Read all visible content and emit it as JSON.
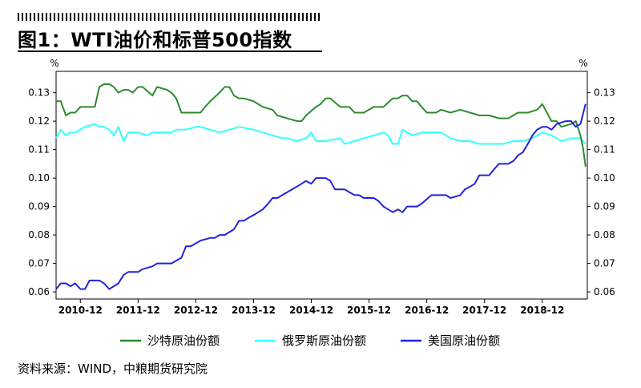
{
  "title": "图1：WTI油价和标普500指数",
  "source": "资料来源：WIND，中粮期货研究院",
  "chart_data": {
    "type": "line",
    "left_unit": "%",
    "right_unit": "%",
    "y_ticks": [
      "0.06",
      "0.07",
      "0.08",
      "0.09",
      "0.10",
      "0.11",
      "0.12",
      "0.13"
    ],
    "x_ticks": [
      {
        "label": "2010-12",
        "t": 2010.92
      },
      {
        "label": "2011-12",
        "t": 2011.92
      },
      {
        "label": "2012-12",
        "t": 2012.92
      },
      {
        "label": "2013-12",
        "t": 2013.92
      },
      {
        "label": "2014-12",
        "t": 2014.92
      },
      {
        "label": "2015-12",
        "t": 2015.92
      },
      {
        "label": "2016-12",
        "t": 2016.92
      },
      {
        "label": "2017-12",
        "t": 2017.92
      },
      {
        "label": "2018-12",
        "t": 2018.92
      }
    ],
    "xlim": [
      2010.5,
      2019.7
    ],
    "ylim": [
      0.0575,
      0.1375
    ],
    "grid": false,
    "legend_position": "bottom",
    "series": [
      {
        "name": "沙特原油份额",
        "color": "#2e8b2e",
        "points": [
          [
            2010.5,
            0.127
          ],
          [
            2010.58,
            0.127
          ],
          [
            2010.67,
            0.122
          ],
          [
            2010.75,
            0.123
          ],
          [
            2010.83,
            0.123
          ],
          [
            2010.92,
            0.125
          ],
          [
            2011.0,
            0.125
          ],
          [
            2011.17,
            0.125
          ],
          [
            2011.25,
            0.132
          ],
          [
            2011.33,
            0.133
          ],
          [
            2011.42,
            0.133
          ],
          [
            2011.5,
            0.132
          ],
          [
            2011.58,
            0.13
          ],
          [
            2011.67,
            0.131
          ],
          [
            2011.75,
            0.131
          ],
          [
            2011.83,
            0.13
          ],
          [
            2011.92,
            0.132
          ],
          [
            2012.0,
            0.132
          ],
          [
            2012.17,
            0.129
          ],
          [
            2012.25,
            0.132
          ],
          [
            2012.42,
            0.131
          ],
          [
            2012.5,
            0.13
          ],
          [
            2012.58,
            0.128
          ],
          [
            2012.67,
            0.123
          ],
          [
            2012.83,
            0.123
          ],
          [
            2013.0,
            0.123
          ],
          [
            2013.08,
            0.125
          ],
          [
            2013.17,
            0.127
          ],
          [
            2013.33,
            0.13
          ],
          [
            2013.42,
            0.132
          ],
          [
            2013.5,
            0.132
          ],
          [
            2013.58,
            0.129
          ],
          [
            2013.67,
            0.128
          ],
          [
            2013.75,
            0.128
          ],
          [
            2013.92,
            0.127
          ],
          [
            2014.08,
            0.125
          ],
          [
            2014.25,
            0.124
          ],
          [
            2014.33,
            0.122
          ],
          [
            2014.5,
            0.121
          ],
          [
            2014.67,
            0.12
          ],
          [
            2014.75,
            0.12
          ],
          [
            2014.83,
            0.122
          ],
          [
            2015.0,
            0.125
          ],
          [
            2015.08,
            0.126
          ],
          [
            2015.17,
            0.128
          ],
          [
            2015.25,
            0.128
          ],
          [
            2015.42,
            0.125
          ],
          [
            2015.58,
            0.125
          ],
          [
            2015.67,
            0.123
          ],
          [
            2015.83,
            0.123
          ],
          [
            2016.0,
            0.125
          ],
          [
            2016.17,
            0.125
          ],
          [
            2016.33,
            0.128
          ],
          [
            2016.42,
            0.128
          ],
          [
            2016.5,
            0.129
          ],
          [
            2016.58,
            0.129
          ],
          [
            2016.67,
            0.127
          ],
          [
            2016.75,
            0.127
          ],
          [
            2016.83,
            0.125
          ],
          [
            2016.92,
            0.123
          ],
          [
            2017.08,
            0.123
          ],
          [
            2017.17,
            0.124
          ],
          [
            2017.33,
            0.123
          ],
          [
            2017.5,
            0.124
          ],
          [
            2017.67,
            0.123
          ],
          [
            2017.83,
            0.122
          ],
          [
            2018.0,
            0.122
          ],
          [
            2018.17,
            0.121
          ],
          [
            2018.33,
            0.121
          ],
          [
            2018.5,
            0.123
          ],
          [
            2018.67,
            0.123
          ],
          [
            2018.83,
            0.124
          ],
          [
            2018.92,
            0.126
          ],
          [
            2019.0,
            0.123
          ],
          [
            2019.08,
            0.12
          ],
          [
            2019.17,
            0.12
          ],
          [
            2019.25,
            0.118
          ],
          [
            2019.42,
            0.119
          ],
          [
            2019.5,
            0.12
          ],
          [
            2019.58,
            0.115
          ],
          [
            2019.63,
            0.11
          ],
          [
            2019.67,
            0.104
          ]
        ]
      },
      {
        "name": "俄罗斯原油份额",
        "color": "#33ffff",
        "points": [
          [
            2010.5,
            0.114
          ],
          [
            2010.58,
            0.117
          ],
          [
            2010.67,
            0.115
          ],
          [
            2010.75,
            0.116
          ],
          [
            2010.83,
            0.116
          ],
          [
            2011.0,
            0.118
          ],
          [
            2011.17,
            0.119
          ],
          [
            2011.25,
            0.118
          ],
          [
            2011.33,
            0.118
          ],
          [
            2011.42,
            0.117
          ],
          [
            2011.5,
            0.115
          ],
          [
            2011.58,
            0.118
          ],
          [
            2011.67,
            0.113
          ],
          [
            2011.75,
            0.116
          ],
          [
            2011.92,
            0.116
          ],
          [
            2012.08,
            0.115
          ],
          [
            2012.17,
            0.116
          ],
          [
            2012.33,
            0.116
          ],
          [
            2012.5,
            0.116
          ],
          [
            2012.58,
            0.117
          ],
          [
            2012.75,
            0.117
          ],
          [
            2012.92,
            0.118
          ],
          [
            2013.0,
            0.118
          ],
          [
            2013.17,
            0.117
          ],
          [
            2013.33,
            0.116
          ],
          [
            2013.5,
            0.117
          ],
          [
            2013.67,
            0.118
          ],
          [
            2013.92,
            0.117
          ],
          [
            2014.08,
            0.116
          ],
          [
            2014.25,
            0.115
          ],
          [
            2014.42,
            0.114
          ],
          [
            2014.5,
            0.114
          ],
          [
            2014.67,
            0.113
          ],
          [
            2014.83,
            0.114
          ],
          [
            2014.92,
            0.116
          ],
          [
            2015.0,
            0.113
          ],
          [
            2015.17,
            0.113
          ],
          [
            2015.42,
            0.114
          ],
          [
            2015.5,
            0.112
          ],
          [
            2015.67,
            0.113
          ],
          [
            2015.83,
            0.114
          ],
          [
            2016.0,
            0.115
          ],
          [
            2016.17,
            0.116
          ],
          [
            2016.25,
            0.115
          ],
          [
            2016.33,
            0.112
          ],
          [
            2016.42,
            0.112
          ],
          [
            2016.5,
            0.117
          ],
          [
            2016.67,
            0.115
          ],
          [
            2016.83,
            0.116
          ],
          [
            2017.0,
            0.116
          ],
          [
            2017.17,
            0.116
          ],
          [
            2017.33,
            0.114
          ],
          [
            2017.5,
            0.113
          ],
          [
            2017.67,
            0.113
          ],
          [
            2017.83,
            0.112
          ],
          [
            2018.0,
            0.112
          ],
          [
            2018.25,
            0.112
          ],
          [
            2018.42,
            0.113
          ],
          [
            2018.58,
            0.113
          ],
          [
            2018.75,
            0.114
          ],
          [
            2018.92,
            0.116
          ],
          [
            2019.08,
            0.115
          ],
          [
            2019.25,
            0.113
          ],
          [
            2019.42,
            0.114
          ],
          [
            2019.58,
            0.114
          ],
          [
            2019.67,
            0.112
          ]
        ]
      },
      {
        "name": "美国原油份额",
        "color": "#2222dd",
        "points": [
          [
            2010.5,
            0.061
          ],
          [
            2010.58,
            0.063
          ],
          [
            2010.67,
            0.063
          ],
          [
            2010.75,
            0.062
          ],
          [
            2010.83,
            0.063
          ],
          [
            2010.92,
            0.061
          ],
          [
            2011.0,
            0.061
          ],
          [
            2011.08,
            0.064
          ],
          [
            2011.17,
            0.064
          ],
          [
            2011.25,
            0.064
          ],
          [
            2011.33,
            0.063
          ],
          [
            2011.42,
            0.061
          ],
          [
            2011.5,
            0.062
          ],
          [
            2011.58,
            0.063
          ],
          [
            2011.67,
            0.066
          ],
          [
            2011.75,
            0.067
          ],
          [
            2011.92,
            0.067
          ],
          [
            2012.0,
            0.068
          ],
          [
            2012.17,
            0.069
          ],
          [
            2012.25,
            0.07
          ],
          [
            2012.42,
            0.07
          ],
          [
            2012.5,
            0.07
          ],
          [
            2012.58,
            0.071
          ],
          [
            2012.67,
            0.072
          ],
          [
            2012.75,
            0.076
          ],
          [
            2012.83,
            0.076
          ],
          [
            2013.0,
            0.078
          ],
          [
            2013.17,
            0.079
          ],
          [
            2013.25,
            0.079
          ],
          [
            2013.33,
            0.08
          ],
          [
            2013.42,
            0.08
          ],
          [
            2013.5,
            0.081
          ],
          [
            2013.58,
            0.082
          ],
          [
            2013.67,
            0.085
          ],
          [
            2013.75,
            0.085
          ],
          [
            2013.83,
            0.086
          ],
          [
            2013.92,
            0.087
          ],
          [
            2014.08,
            0.089
          ],
          [
            2014.17,
            0.091
          ],
          [
            2014.25,
            0.093
          ],
          [
            2014.33,
            0.093
          ],
          [
            2014.5,
            0.095
          ],
          [
            2014.67,
            0.097
          ],
          [
            2014.75,
            0.098
          ],
          [
            2014.83,
            0.099
          ],
          [
            2014.92,
            0.098
          ],
          [
            2015.0,
            0.1
          ],
          [
            2015.08,
            0.1
          ],
          [
            2015.17,
            0.1
          ],
          [
            2015.25,
            0.099
          ],
          [
            2015.33,
            0.096
          ],
          [
            2015.5,
            0.096
          ],
          [
            2015.58,
            0.095
          ],
          [
            2015.67,
            0.094
          ],
          [
            2015.75,
            0.094
          ],
          [
            2015.83,
            0.093
          ],
          [
            2016.0,
            0.093
          ],
          [
            2016.08,
            0.092
          ],
          [
            2016.17,
            0.09
          ],
          [
            2016.25,
            0.089
          ],
          [
            2016.33,
            0.088
          ],
          [
            2016.42,
            0.089
          ],
          [
            2016.5,
            0.088
          ],
          [
            2016.58,
            0.09
          ],
          [
            2016.67,
            0.09
          ],
          [
            2016.75,
            0.09
          ],
          [
            2016.83,
            0.091
          ],
          [
            2017.0,
            0.094
          ],
          [
            2017.08,
            0.094
          ],
          [
            2017.25,
            0.094
          ],
          [
            2017.33,
            0.093
          ],
          [
            2017.5,
            0.094
          ],
          [
            2017.58,
            0.096
          ],
          [
            2017.67,
            0.097
          ],
          [
            2017.75,
            0.098
          ],
          [
            2017.83,
            0.101
          ],
          [
            2018.0,
            0.101
          ],
          [
            2018.08,
            0.103
          ],
          [
            2018.17,
            0.105
          ],
          [
            2018.33,
            0.105
          ],
          [
            2018.42,
            0.106
          ],
          [
            2018.5,
            0.108
          ],
          [
            2018.58,
            0.109
          ],
          [
            2018.67,
            0.112
          ],
          [
            2018.75,
            0.115
          ],
          [
            2018.83,
            0.117
          ],
          [
            2018.92,
            0.118
          ],
          [
            2019.0,
            0.118
          ],
          [
            2019.08,
            0.117
          ],
          [
            2019.17,
            0.119
          ],
          [
            2019.33,
            0.12
          ],
          [
            2019.42,
            0.12
          ],
          [
            2019.5,
            0.118
          ],
          [
            2019.58,
            0.119
          ],
          [
            2019.67,
            0.126
          ]
        ]
      }
    ]
  }
}
